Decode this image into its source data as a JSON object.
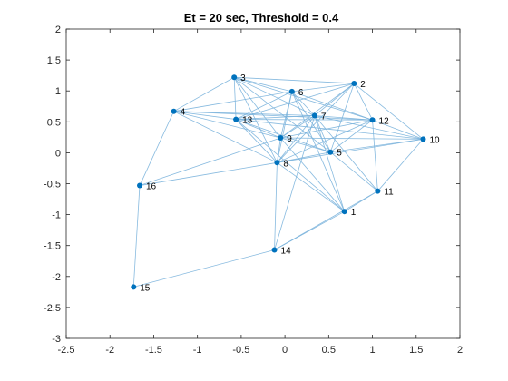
{
  "chart_data": {
    "type": "scatter",
    "title": "Et = 20 sec, Threshold = 0.4",
    "xlabel": "",
    "ylabel": "",
    "xlim": [
      -2.5,
      2
    ],
    "ylim": [
      -3,
      2
    ],
    "x_ticks": [
      "-2.5",
      "-2",
      "-1.5",
      "-1",
      "-0.5",
      "0",
      "0.5",
      "1",
      "1.5",
      "2"
    ],
    "y_ticks": [
      "-3",
      "-2.5",
      "-2",
      "-1.5",
      "-1",
      "-0.5",
      "0",
      "0.5",
      "1",
      "1.5",
      "2"
    ],
    "grid": false,
    "colors": {
      "node": "#0072BD",
      "edge": "#7AB3DC",
      "axis": "#262626"
    },
    "nodes": [
      {
        "id": "1",
        "x": 0.68,
        "y": -0.95
      },
      {
        "id": "2",
        "x": 0.79,
        "y": 1.12
      },
      {
        "id": "3",
        "x": -0.58,
        "y": 1.22
      },
      {
        "id": "4",
        "x": -1.27,
        "y": 0.67
      },
      {
        "id": "5",
        "x": 0.52,
        "y": 0.01
      },
      {
        "id": "6",
        "x": 0.08,
        "y": 0.99
      },
      {
        "id": "7",
        "x": 0.34,
        "y": 0.6
      },
      {
        "id": "8",
        "x": -0.09,
        "y": -0.16
      },
      {
        "id": "9",
        "x": -0.05,
        "y": 0.24
      },
      {
        "id": "10",
        "x": 1.58,
        "y": 0.22
      },
      {
        "id": "11",
        "x": 1.06,
        "y": -0.62
      },
      {
        "id": "12",
        "x": 1.0,
        "y": 0.53
      },
      {
        "id": "13",
        "x": -0.56,
        "y": 0.54
      },
      {
        "id": "14",
        "x": -0.12,
        "y": -1.57
      },
      {
        "id": "15",
        "x": -1.73,
        "y": -2.17
      },
      {
        "id": "16",
        "x": -1.66,
        "y": -0.53
      }
    ],
    "edges": [
      [
        "15",
        "16"
      ],
      [
        "15",
        "14"
      ],
      [
        "16",
        "4"
      ],
      [
        "16",
        "9"
      ],
      [
        "16",
        "8"
      ],
      [
        "14",
        "1"
      ],
      [
        "14",
        "11"
      ],
      [
        "14",
        "8"
      ],
      [
        "14",
        "7"
      ],
      [
        "1",
        "11"
      ],
      [
        "1",
        "8"
      ],
      [
        "1",
        "9"
      ],
      [
        "1",
        "7"
      ],
      [
        "1",
        "13"
      ],
      [
        "1",
        "6"
      ],
      [
        "11",
        "10"
      ],
      [
        "11",
        "12"
      ],
      [
        "11",
        "5"
      ],
      [
        "11",
        "7"
      ],
      [
        "10",
        "2"
      ],
      [
        "10",
        "12"
      ],
      [
        "10",
        "7"
      ],
      [
        "10",
        "9"
      ],
      [
        "10",
        "13"
      ],
      [
        "10",
        "5"
      ],
      [
        "10",
        "8"
      ],
      [
        "2",
        "3"
      ],
      [
        "2",
        "6"
      ],
      [
        "2",
        "7"
      ],
      [
        "2",
        "9"
      ],
      [
        "2",
        "5"
      ],
      [
        "2",
        "8"
      ],
      [
        "2",
        "12"
      ],
      [
        "2",
        "13"
      ],
      [
        "3",
        "6"
      ],
      [
        "3",
        "7"
      ],
      [
        "3",
        "9"
      ],
      [
        "3",
        "5"
      ],
      [
        "3",
        "12"
      ],
      [
        "3",
        "4"
      ],
      [
        "3",
        "13"
      ],
      [
        "3",
        "8"
      ],
      [
        "4",
        "6"
      ],
      [
        "4",
        "13"
      ],
      [
        "4",
        "7"
      ],
      [
        "4",
        "9"
      ],
      [
        "4",
        "12"
      ],
      [
        "4",
        "8"
      ],
      [
        "6",
        "13"
      ],
      [
        "6",
        "9"
      ],
      [
        "6",
        "7"
      ],
      [
        "6",
        "12"
      ],
      [
        "6",
        "5"
      ],
      [
        "6",
        "8"
      ],
      [
        "7",
        "13"
      ],
      [
        "7",
        "9"
      ],
      [
        "7",
        "5"
      ],
      [
        "7",
        "8"
      ],
      [
        "7",
        "12"
      ],
      [
        "12",
        "13"
      ],
      [
        "12",
        "9"
      ],
      [
        "12",
        "5"
      ],
      [
        "12",
        "8"
      ],
      [
        "13",
        "9"
      ],
      [
        "13",
        "5"
      ],
      [
        "13",
        "8"
      ],
      [
        "9",
        "5"
      ],
      [
        "9",
        "8"
      ],
      [
        "5",
        "8"
      ]
    ]
  }
}
